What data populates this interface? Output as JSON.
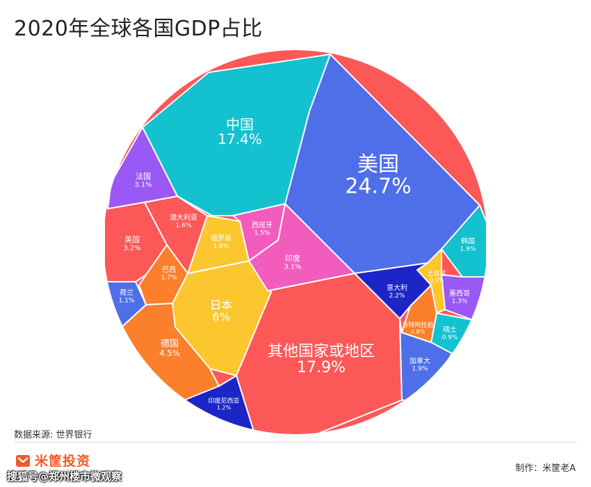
{
  "title": "2020年全球各国GDP占比",
  "source": "数据来源: 世界银行",
  "brand": {
    "name": "米筐投资",
    "icon": "brand-logo-icon",
    "color": "#ef5b2b"
  },
  "credit": "制作：米筐老A",
  "watermark": "搜狐号@郑州楼市微观察",
  "chart_data": {
    "type": "voronoi-treemap",
    "title": "2020年全球各国GDP占比",
    "unit": "%",
    "cells": [
      {
        "name": "美国",
        "value": 24.7,
        "label": "24.7%",
        "color": "#4f6fe8"
      },
      {
        "name": "中国",
        "value": 17.4,
        "label": "17.4%",
        "color": "#14c1cf"
      },
      {
        "name": "其他国家或地区",
        "value": 17.9,
        "label": "17.9%",
        "color": "#fc5858"
      },
      {
        "name": "日本",
        "value": 6,
        "label": "6%",
        "color": "#fcc62e"
      },
      {
        "name": "德国",
        "value": 4.5,
        "label": "4.5%",
        "color": "#fc7f2b"
      },
      {
        "name": "英国",
        "value": 3.2,
        "label": "3.2%",
        "color": "#fc5858"
      },
      {
        "name": "法国",
        "value": 3.1,
        "label": "3.1%",
        "color": "#9a58f5"
      },
      {
        "name": "印度",
        "value": 3.1,
        "label": "3.1%",
        "color": "#f25cbd"
      },
      {
        "name": "意大利",
        "value": 2.2,
        "label": "2.2%",
        "color": "#1c26c6"
      },
      {
        "name": "韩国",
        "value": 1.9,
        "label": "1.9%",
        "color": "#14c1cf"
      },
      {
        "name": "加拿大",
        "value": 1.9,
        "label": "1.9%",
        "color": "#4f6fe8"
      },
      {
        "name": "俄罗斯",
        "value": 1.8,
        "label": "1.8%",
        "color": "#fcc62e"
      },
      {
        "name": "巴西",
        "value": 1.7,
        "label": "1.7%",
        "color": "#fc7f2b"
      },
      {
        "name": "澳大利亚",
        "value": 1.6,
        "label": "1.6%",
        "color": "#fc5858"
      },
      {
        "name": "西班牙",
        "value": 1.5,
        "label": "1.5%",
        "color": "#f25cbd"
      },
      {
        "name": "墨西哥",
        "value": 1.3,
        "label": "1.3%",
        "color": "#9a58f5"
      },
      {
        "name": "印度尼西亚",
        "value": 1.2,
        "label": "1.2%",
        "color": "#1c26c6"
      },
      {
        "name": "荷兰",
        "value": 1.1,
        "label": "1.1%",
        "color": "#4f6fe8"
      },
      {
        "name": "瑞士",
        "value": 0.9,
        "label": "0.9%",
        "color": "#14c1cf"
      },
      {
        "name": "土耳其",
        "value": 0.9,
        "label": "0.9%",
        "color": "#fcc62e"
      },
      {
        "name": "沙特阿拉伯",
        "value": 0.8,
        "label": "0.8%",
        "color": "#fc7f2b"
      }
    ]
  }
}
